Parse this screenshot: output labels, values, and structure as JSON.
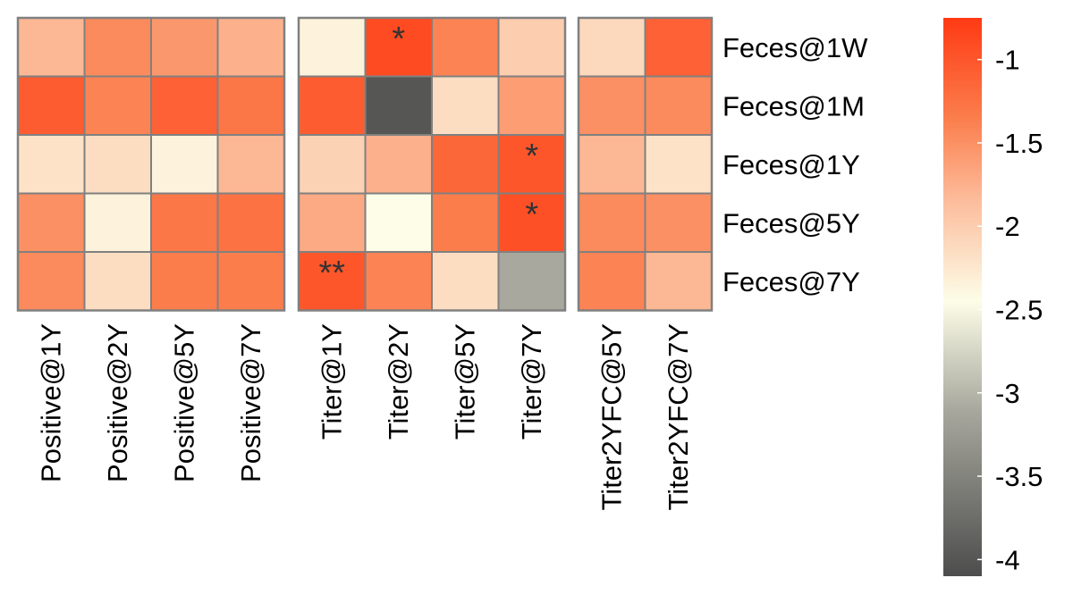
{
  "chart_data": {
    "type": "heatmap",
    "title": "",
    "xlabel": "",
    "ylabel": "",
    "rows": [
      "Feces@1W",
      "Feces@1M",
      "Feces@1Y",
      "Feces@5Y",
      "Feces@7Y"
    ],
    "groups": [
      {
        "columns": [
          "Positive@1Y",
          "Positive@2Y",
          "Positive@5Y",
          "Positive@7Y"
        ],
        "values": [
          [
            -1.8,
            -1.45,
            -1.55,
            -1.75
          ],
          [
            -1.05,
            -1.4,
            -1.1,
            -1.3
          ],
          [
            -2.2,
            -2.15,
            -2.35,
            -1.8
          ],
          [
            -1.5,
            -2.35,
            -1.3,
            -1.25
          ],
          [
            -1.45,
            -2.15,
            -1.35,
            -1.35
          ]
        ],
        "marks": [
          [
            "",
            "",
            "",
            ""
          ],
          [
            "",
            "",
            "",
            ""
          ],
          [
            "",
            "",
            "",
            ""
          ],
          [
            "",
            "",
            "",
            ""
          ],
          [
            "",
            "",
            "",
            ""
          ]
        ]
      },
      {
        "columns": [
          "Titer@1Y",
          "Titer@2Y",
          "Titer@5Y",
          "Titer@7Y"
        ],
        "values": [
          [
            -2.35,
            -0.9,
            -1.4,
            -2.0
          ],
          [
            -1.05,
            -4.0,
            -2.15,
            -1.6
          ],
          [
            -2.05,
            -1.75,
            -1.15,
            -1.0
          ],
          [
            -1.7,
            -2.45,
            -1.35,
            -0.95
          ],
          [
            -1.0,
            -1.4,
            -2.15,
            -3.1
          ]
        ],
        "marks": [
          [
            "",
            "*",
            "",
            ""
          ],
          [
            "",
            "",
            "",
            ""
          ],
          [
            "",
            "",
            "",
            "*"
          ],
          [
            "",
            "",
            "",
            "*"
          ],
          [
            "**",
            "",
            "",
            ""
          ]
        ]
      },
      {
        "columns": [
          "Titer2YFC@5Y",
          "Titer2YFC@7Y"
        ],
        "values": [
          [
            -2.1,
            -1.1
          ],
          [
            -1.5,
            -1.45
          ],
          [
            -1.8,
            -2.2
          ],
          [
            -1.45,
            -1.5
          ],
          [
            -1.4,
            -1.8
          ]
        ],
        "marks": [
          [
            "",
            ""
          ],
          [
            "",
            ""
          ],
          [
            "",
            ""
          ],
          [
            "",
            ""
          ],
          [
            "",
            ""
          ]
        ]
      }
    ],
    "colorbar": {
      "min": -4.1,
      "max": -0.75,
      "ticks": [
        -1,
        -1.5,
        -2,
        -2.5,
        -3,
        -3.5,
        -4
      ],
      "tick_labels": [
        "-1",
        "-1.5",
        "-2",
        "-2.5",
        "-3",
        "-3.5",
        "-4"
      ],
      "stops": [
        {
          "value": -4.1,
          "color": "#4d4d4d"
        },
        {
          "value": -3.1,
          "color": "#a8a89e"
        },
        {
          "value": -2.45,
          "color": "#fdfde8"
        },
        {
          "value": -1.85,
          "color": "#fcbd9c"
        },
        {
          "value": -1.35,
          "color": "#fb7d4c"
        },
        {
          "value": -0.75,
          "color": "#ff3a14"
        }
      ]
    },
    "grid_color": "#808080",
    "mark_color": "#333333",
    "legend_position": "right"
  }
}
